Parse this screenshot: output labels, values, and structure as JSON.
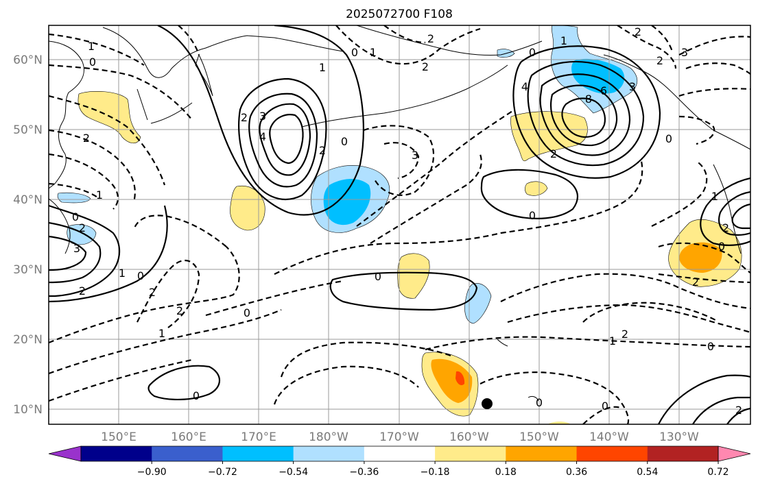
{
  "title": "2025072700 F108",
  "lat_labels": [
    "60°N",
    "50°N",
    "40°N",
    "30°N",
    "20°N",
    "10°N"
  ],
  "lon_labels": [
    "150°E",
    "160°E",
    "170°E",
    "180°W",
    "170°W",
    "160°W",
    "150°W",
    "140°W",
    "130°W"
  ],
  "colorbar": {
    "colors": [
      "#9932cc",
      "#00008b",
      "#3a5fcd",
      "#00bfff",
      "#b0e0ff",
      "#ffffff",
      "#ffeb8a",
      "#ffa500",
      "#ff4500",
      "#b22222",
      "#ff88b0"
    ],
    "tick_labels": [
      "−0.90",
      "−0.72",
      "−0.54",
      "−0.36",
      "−0.18",
      "0.18",
      "0.36",
      "0.54",
      "0.72",
      "0.90"
    ]
  },
  "contour_labels": {
    "c1": "1",
    "c2": "0",
    "c3": "0",
    "c4": "1",
    "c5": "2",
    "c6": "2",
    "c7": "2",
    "c8": "1",
    "c9": "3",
    "c10": "2",
    "c11": "4",
    "c12": "2",
    "c13": "0",
    "c14": "0",
    "c15": "1",
    "c16": "2",
    "c17": "3",
    "c18": "1",
    "c19": "0",
    "c20": "2",
    "c21": "3",
    "c22": "2",
    "c23": "0",
    "c24": "2",
    "c25": "1",
    "c26": "0",
    "c27": "0",
    "c28": "2",
    "c29": "1",
    "c30": "0",
    "c31": "4",
    "c32": "6",
    "c33": "8",
    "c34": "3",
    "c35": "2",
    "c36": "0",
    "c37": "3",
    "c38": "0",
    "c39": "0",
    "c40": "1",
    "c41": "2",
    "c42": "0",
    "c43": "2",
    "c44": "2",
    "c45": "0",
    "c46": "2",
    "c47": "2",
    "c48": "1",
    "c49": "0"
  }
}
